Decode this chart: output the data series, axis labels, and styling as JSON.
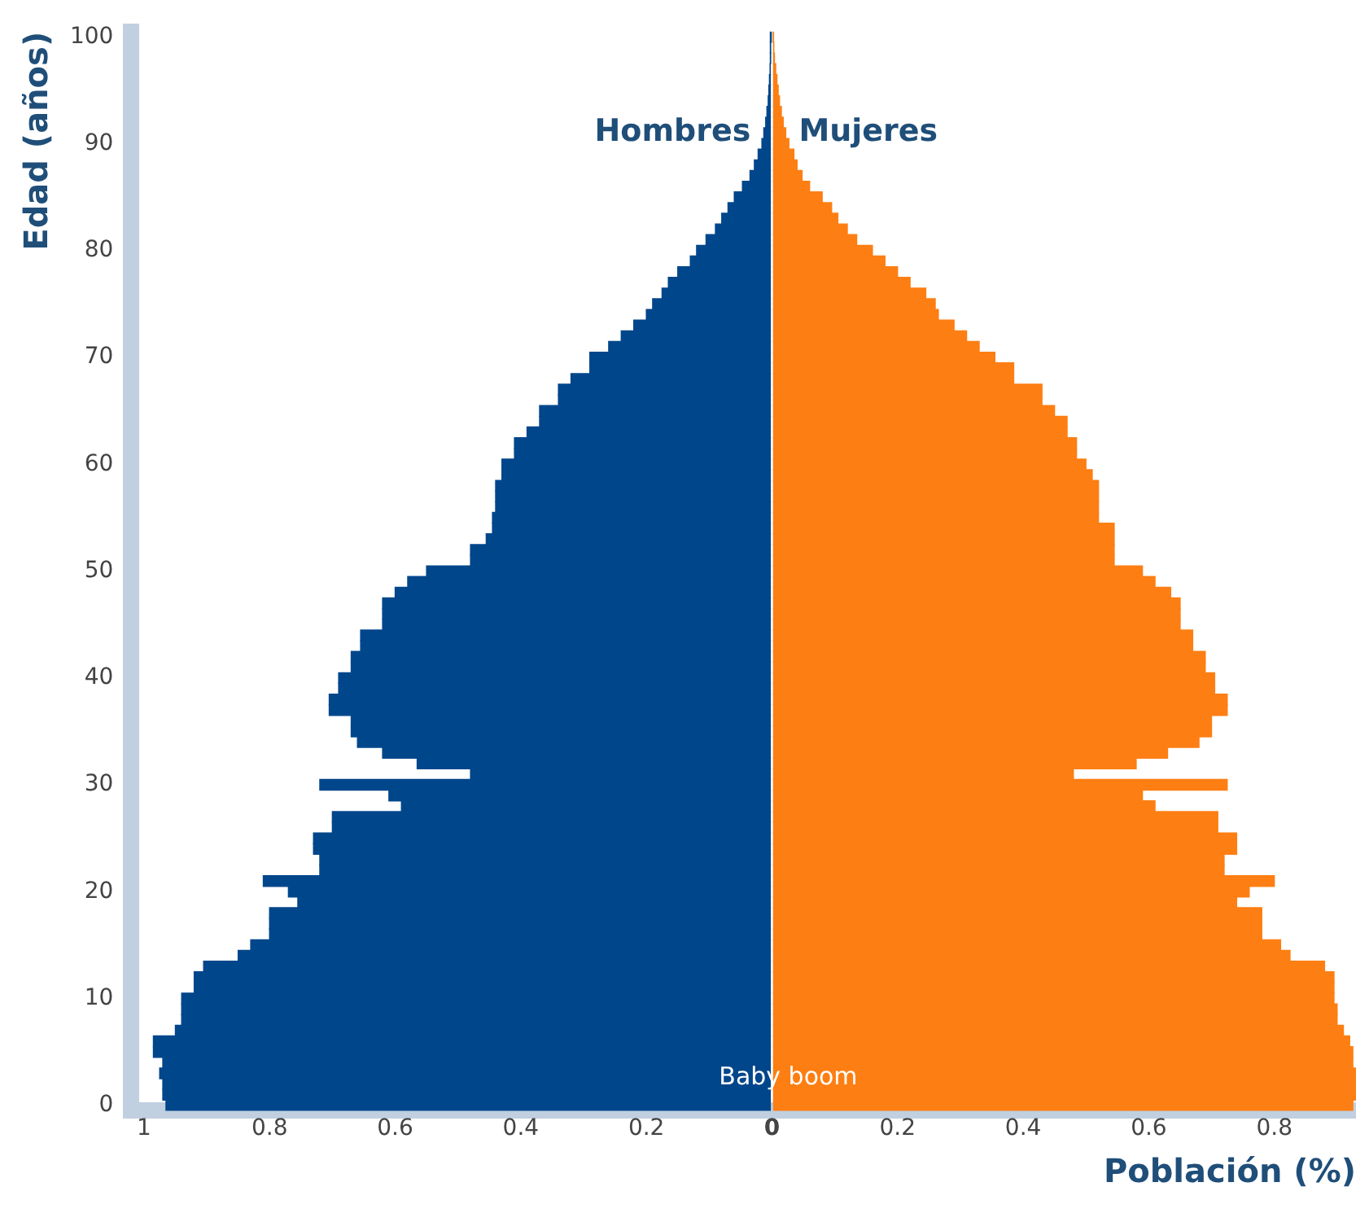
{
  "chart_data": {
    "type": "bar",
    "orientation": "horizontal",
    "stacked": true,
    "xlabel": "Población (%)",
    "ylabel": "Edad (años)",
    "annotations": [
      "Baby boom"
    ],
    "legend": false,
    "categories": [
      "100",
      null,
      null,
      null,
      null,
      null,
      null,
      null,
      null,
      null,
      "90",
      null,
      null,
      null,
      null,
      null,
      null,
      null,
      null,
      null,
      "80",
      null,
      null,
      null,
      null,
      null,
      null,
      null,
      null,
      null,
      "70",
      null,
      null,
      null,
      null,
      null,
      null,
      null,
      null,
      null,
      "60",
      null,
      null,
      null,
      null,
      null,
      null,
      null,
      null,
      null,
      "50",
      null,
      null,
      null,
      null,
      null,
      null,
      null,
      null,
      null,
      "40",
      null,
      null,
      null,
      null,
      null,
      null,
      null,
      null,
      null,
      "30",
      null,
      null,
      null,
      null,
      null,
      null,
      null,
      null,
      null,
      "20",
      null,
      null,
      null,
      null,
      null,
      null,
      null,
      null,
      null,
      "10",
      null,
      null,
      null,
      null,
      null,
      null,
      null,
      null,
      null,
      "0"
    ],
    "xlim": [
      -1.02,
      0.93
    ],
    "xticks": [
      {
        "value": -1,
        "label": "1"
      },
      {
        "value": -0.8,
        "label": "0.8"
      },
      {
        "value": -0.6,
        "label": "0.6"
      },
      {
        "value": -0.4,
        "label": "0.4"
      },
      {
        "value": -0.2,
        "label": "0.2"
      },
      0,
      0.2,
      0.4,
      0.6,
      0.8
    ],
    "series": [
      {
        "name": "Hombres",
        "color": "#00468b",
        "values": [
          -0.001,
          -0.002,
          -0.002,
          -0.003,
          -0.004,
          -0.005,
          -0.006,
          -0.008,
          -0.01,
          -0.013,
          -0.016,
          -0.022,
          -0.028,
          -0.035,
          -0.047,
          -0.06,
          -0.07,
          -0.08,
          -0.09,
          -0.105,
          -0.12,
          -0.13,
          -0.15,
          -0.165,
          -0.175,
          -0.19,
          -0.2,
          -0.22,
          -0.24,
          -0.26,
          -0.29,
          -0.29,
          -0.32,
          -0.34,
          -0.34,
          -0.37,
          -0.37,
          -0.39,
          -0.41,
          -0.41,
          -0.43,
          -0.43,
          -0.44,
          -0.44,
          -0.44,
          -0.445,
          -0.445,
          -0.455,
          -0.48,
          -0.48,
          -0.55,
          -0.58,
          -0.6,
          -0.62,
          -0.62,
          -0.62,
          -0.655,
          -0.655,
          -0.67,
          -0.67,
          -0.69,
          -0.69,
          -0.705,
          -0.705,
          -0.67,
          -0.67,
          -0.66,
          -0.62,
          -0.565,
          -0.48,
          -0.72,
          -0.61,
          -0.59,
          -0.7,
          -0.7,
          -0.73,
          -0.73,
          -0.72,
          -0.72,
          -0.81,
          -0.77,
          -0.755,
          -0.8,
          -0.8,
          -0.8,
          -0.83,
          -0.85,
          -0.905,
          -0.92,
          -0.92,
          -0.94,
          -0.94,
          -0.94,
          -0.95,
          -0.985,
          -0.985,
          -0.97,
          -0.975,
          -0.97,
          -0.97,
          -0.965
        ]
      },
      {
        "name": "Mujeres",
        "color": "#fd7e12",
        "values": [
          0.002,
          0.003,
          0.004,
          0.006,
          0.008,
          0.01,
          0.012,
          0.015,
          0.018,
          0.022,
          0.027,
          0.035,
          0.04,
          0.048,
          0.06,
          0.08,
          0.095,
          0.105,
          0.12,
          0.135,
          0.16,
          0.18,
          0.2,
          0.22,
          0.245,
          0.26,
          0.265,
          0.29,
          0.31,
          0.33,
          0.355,
          0.385,
          0.385,
          0.43,
          0.43,
          0.45,
          0.47,
          0.47,
          0.485,
          0.485,
          0.5,
          0.51,
          0.52,
          0.52,
          0.52,
          0.52,
          0.545,
          0.545,
          0.545,
          0.545,
          0.59,
          0.61,
          0.635,
          0.65,
          0.65,
          0.65,
          0.67,
          0.67,
          0.69,
          0.69,
          0.705,
          0.705,
          0.725,
          0.725,
          0.7,
          0.7,
          0.68,
          0.63,
          0.58,
          0.48,
          0.725,
          0.59,
          0.61,
          0.71,
          0.71,
          0.74,
          0.74,
          0.72,
          0.72,
          0.8,
          0.76,
          0.74,
          0.78,
          0.78,
          0.78,
          0.81,
          0.825,
          0.88,
          0.895,
          0.895,
          0.895,
          0.9,
          0.9,
          0.91,
          0.92,
          0.925,
          0.925,
          0.93,
          0.93,
          0.93,
          0.925
        ]
      }
    ]
  }
}
